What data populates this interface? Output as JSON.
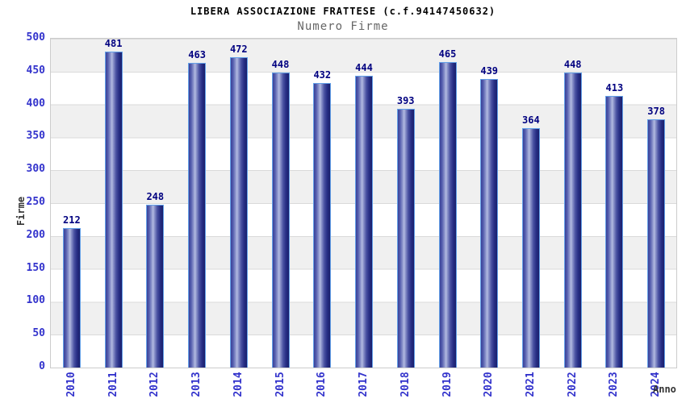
{
  "header": {
    "title": "LIBERA ASSOCIAZIONE FRATTESE (c.f.94147450632)",
    "subtitle": "Numero Firme"
  },
  "chart_data": {
    "type": "bar",
    "title": "LIBERA ASSOCIAZIONE FRATTESE (c.f.94147450632)",
    "subtitle": "Numero Firme",
    "xlabel": "Anno",
    "ylabel": "Firme",
    "categories": [
      "2010",
      "2011",
      "2012",
      "2013",
      "2014",
      "2015",
      "2016",
      "2017",
      "2018",
      "2019",
      "2020",
      "2021",
      "2022",
      "2023",
      "2024"
    ],
    "values": [
      212,
      481,
      248,
      463,
      472,
      448,
      432,
      444,
      393,
      465,
      439,
      364,
      448,
      413,
      378
    ],
    "ylim": [
      0,
      500
    ],
    "ytick_step": 50,
    "y_tick_labels": [
      "0",
      "50",
      "100",
      "150",
      "200",
      "250",
      "300",
      "350",
      "400",
      "450",
      "500"
    ],
    "grid": "horizontal-bands-alternating",
    "legend": null,
    "colors": {
      "bar_dark": "#1a1f6b",
      "bar_mid": "#4a52a2",
      "bar_highlight": "#b3bbe2",
      "bar_outline": "#63a0e8",
      "axis_tick_label": "#3333cc",
      "value_label": "#000080",
      "band_gray": "#f0f0f0",
      "band_white": "#ffffff",
      "gridline": "#dadada",
      "plot_border": "#cccccc",
      "title_color": "#000000",
      "subtitle_color": "#666666",
      "axis_title_color": "#333333"
    }
  }
}
